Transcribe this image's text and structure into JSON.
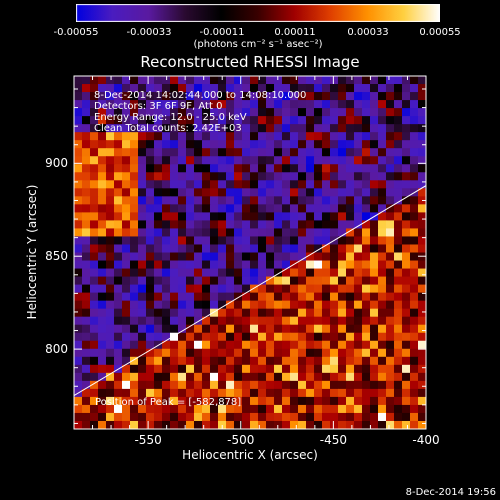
{
  "colorbar": {
    "ticks": [
      "-0.00055",
      "-0.00033",
      "-0.00011",
      "0.00011",
      "0.00033",
      "0.00055"
    ],
    "units": "(photons cm⁻² s⁻¹ asec⁻²)",
    "range": [
      -0.00055,
      0.00055
    ],
    "colors": [
      "#0000e0",
      "#4a1cc0",
      "#5a1aa0",
      "#2a0a30",
      "#000000",
      "#3a0000",
      "#a00000",
      "#e04000",
      "#ff9000",
      "#ffd040",
      "#ffffff"
    ]
  },
  "annotations": {
    "time_range": "8-Dec-2014 14:02:44.000 to 14:08:10.000",
    "detectors": "Detectors: 3F 6F 9F, Att 0",
    "energy": "Energy Range: 12.0 - 25.0 keV",
    "clean": "Clean    Total counts: 2.42E+03",
    "peak": "Position of Peak = [-582,878]"
  },
  "footer": {
    "timestamp": "8-Dec-2014 19:56"
  },
  "chart_data": {
    "type": "heatmap",
    "title": "Reconstructed RHESSI Image",
    "xlabel": "Heliocentric X (arcsec)",
    "ylabel": "Heliocentric Y (arcsec)",
    "xlim": [
      -590,
      -400
    ],
    "ylim": [
      757,
      947
    ],
    "x_ticks": [
      -550,
      -500,
      -450,
      -400
    ],
    "y_ticks": [
      800,
      850,
      900
    ],
    "x_tick_labels": [
      "-550",
      "-500",
      "-450",
      "-400"
    ],
    "y_tick_labels": [
      "800",
      "850",
      "900"
    ],
    "limb_line": [
      [
        -590,
        775
      ],
      [
        -400,
        888
      ]
    ],
    "peak": [
      -582,
      878
    ]
  }
}
